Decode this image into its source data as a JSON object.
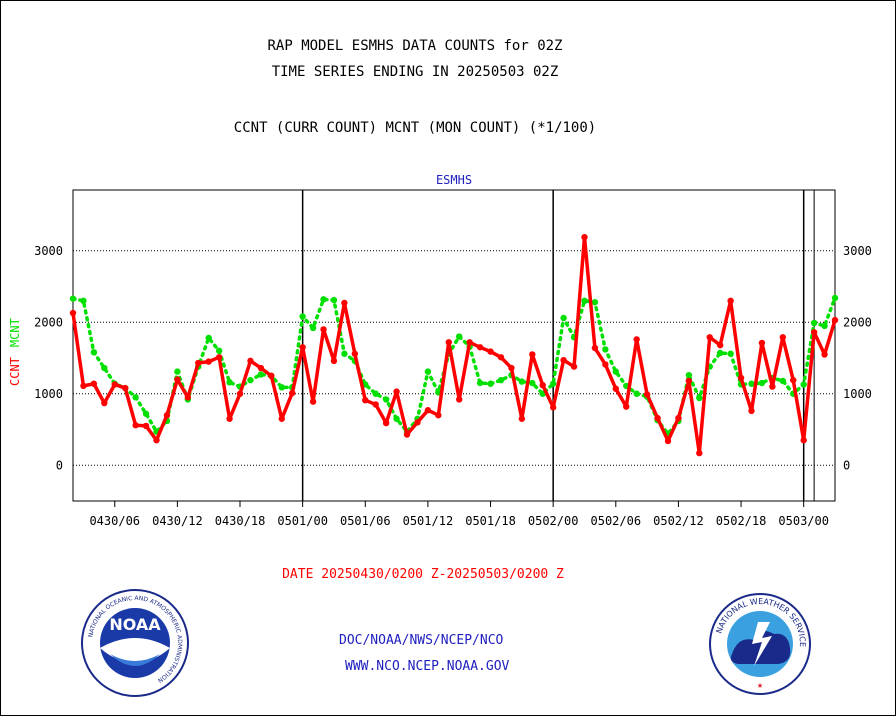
{
  "header": {
    "line1": "RAP MODEL ESMHS DATA COUNTS for 02Z",
    "line2": "TIME SERIES ENDING IN 20250503 02Z",
    "line3": "CCNT (CURR COUNT) MCNT (MON COUNT) (*1/100)"
  },
  "chart_data": {
    "type": "line",
    "title": "ESMHS",
    "ylabel_parts": [
      "CCNT",
      "MCNT"
    ],
    "xlabel": "DATE 20250430/0200 Z-20250503/0200 Z",
    "x_tick_labels": [
      "0430/06",
      "0430/12",
      "0430/18",
      "0501/00",
      "0501/06",
      "0501/12",
      "0501/18",
      "0502/00",
      "0502/06",
      "0502/12",
      "0502/18",
      "0503/00"
    ],
    "y_ticks": [
      0,
      1000,
      2000,
      3000
    ],
    "ylim": [
      -500,
      3850
    ],
    "grid": "horizontal dotted at y ticks",
    "day_boundaries": [
      "0501/00",
      "0502/00",
      "0503/00"
    ],
    "x_hours_from_0430_02": "0..72 in 1-hour steps",
    "series": [
      {
        "name": "CCNT",
        "color": "#ff0000",
        "style": "solid",
        "values": [
          2130,
          1110,
          1140,
          870,
          1130,
          1080,
          560,
          550,
          350,
          700,
          1200,
          950,
          1430,
          1450,
          1510,
          650,
          1000,
          1460,
          1360,
          1250,
          650,
          1010,
          1650,
          890,
          1900,
          1460,
          2270,
          1560,
          910,
          850,
          590,
          1030,
          430,
          600,
          770,
          700,
          1720,
          920,
          1720,
          1650,
          1590,
          1510,
          1360,
          650,
          1550,
          1120,
          810,
          1470,
          1380,
          3190,
          1640,
          1410,
          1070,
          820,
          1760,
          990,
          660,
          340,
          660,
          1180,
          170,
          1790,
          1680,
          2300,
          1220,
          760,
          1710,
          1100,
          1790,
          1190,
          350,
          1860,
          1550,
          2030
        ]
      },
      {
        "name": "MCNT",
        "color": "#00e000",
        "style": "dotted",
        "values": [
          2330,
          2300,
          1580,
          1360,
          1140,
          1080,
          950,
          720,
          470,
          620,
          1310,
          920,
          1380,
          1780,
          1600,
          1160,
          1100,
          1190,
          1270,
          1250,
          1090,
          1090,
          2080,
          1920,
          2320,
          2310,
          1560,
          1460,
          1130,
          1000,
          920,
          650,
          470,
          650,
          1310,
          1020,
          1560,
          1800,
          1660,
          1150,
          1140,
          1190,
          1260,
          1170,
          1150,
          1000,
          1140,
          2060,
          1790,
          2300,
          2280,
          1620,
          1310,
          1110,
          1000,
          960,
          630,
          440,
          620,
          1260,
          940,
          1380,
          1570,
          1560,
          1130,
          1140,
          1150,
          1220,
          1180,
          1000,
          1130,
          1990,
          1950,
          2340
        ]
      }
    ]
  },
  "footer": {
    "org_path": "DOC/NOAA/NWS/NCEP/NCO",
    "website": "WWW.NCO.NCEP.NOAA.GOV",
    "noaa_logo_text": "NOAA",
    "noaa_ring_text": "NATIONAL OCEANIC AND ATMOSPHERIC ADMINISTRATION",
    "noaa_ring_bottom": "U.S. DEPARTMENT OF COMMERCE",
    "nws_ring_text": "NATIONAL WEATHER SERVICE"
  },
  "colors": {
    "ccnt": "#ff0000",
    "mcnt": "#00e000",
    "date_label": "#ff0000",
    "footer_text": "#2020c0",
    "title": "#2020c0"
  }
}
